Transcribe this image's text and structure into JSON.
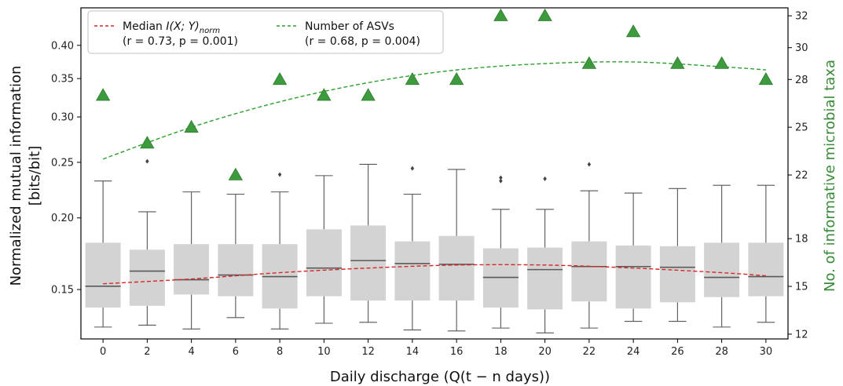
{
  "chart_data": {
    "type": "box",
    "xlabel": "Daily discharge (Q(t − n days))",
    "ylabel_line1": "Normalized mutual information",
    "ylabel_line2": "[bits/bit]",
    "y2label": "No. of informative microbial taxa",
    "y_scale": "log",
    "ylim": [
      0.123,
      0.465
    ],
    "y_ticks": [
      0.15,
      0.2,
      0.25,
      0.3,
      0.35,
      0.4
    ],
    "y_tick_labels": [
      "0.15",
      "0.20",
      "0.25",
      "0.30",
      "0.35",
      "0.40"
    ],
    "y2lim": [
      11.7,
      32.5
    ],
    "y2_ticks": [
      12,
      15,
      18,
      22,
      25,
      28,
      30,
      32
    ],
    "x_categories": [
      "0",
      "2",
      "4",
      "6",
      "8",
      "10",
      "12",
      "14",
      "16",
      "18",
      "20",
      "22",
      "24",
      "26",
      "28",
      "30"
    ],
    "boxes": [
      {
        "x": "0",
        "whislo": 0.129,
        "q1": 0.1395,
        "med": 0.152,
        "q3": 0.181,
        "whishi": 0.232,
        "fliers": []
      },
      {
        "x": "2",
        "whislo": 0.13,
        "q1": 0.1405,
        "med": 0.1615,
        "q3": 0.176,
        "whishi": 0.205,
        "fliers": [
          0.251
        ]
      },
      {
        "x": "4",
        "whislo": 0.128,
        "q1": 0.147,
        "med": 0.156,
        "q3": 0.18,
        "whishi": 0.222,
        "fliers": []
      },
      {
        "x": "6",
        "whislo": 0.134,
        "q1": 0.146,
        "med": 0.159,
        "q3": 0.18,
        "whishi": 0.22,
        "fliers": []
      },
      {
        "x": "8",
        "whislo": 0.128,
        "q1": 0.139,
        "med": 0.158,
        "q3": 0.18,
        "whishi": 0.222,
        "fliers": [
          0.238
        ]
      },
      {
        "x": "10",
        "whislo": 0.131,
        "q1": 0.146,
        "med": 0.1635,
        "q3": 0.191,
        "whishi": 0.237,
        "fliers": []
      },
      {
        "x": "12",
        "whislo": 0.1315,
        "q1": 0.1435,
        "med": 0.1685,
        "q3": 0.194,
        "whishi": 0.248,
        "fliers": []
      },
      {
        "x": "14",
        "whislo": 0.1275,
        "q1": 0.1435,
        "med": 0.1665,
        "q3": 0.182,
        "whishi": 0.22,
        "fliers": [
          0.244
        ]
      },
      {
        "x": "16",
        "whislo": 0.127,
        "q1": 0.1435,
        "med": 0.166,
        "q3": 0.186,
        "whishi": 0.243,
        "fliers": []
      },
      {
        "x": "18",
        "whislo": 0.1285,
        "q1": 0.1395,
        "med": 0.1575,
        "q3": 0.177,
        "whishi": 0.207,
        "fliers": [
          0.232,
          0.235
        ]
      },
      {
        "x": "20",
        "whislo": 0.126,
        "q1": 0.1385,
        "med": 0.1625,
        "q3": 0.1775,
        "whishi": 0.207,
        "fliers": [
          0.234
        ]
      },
      {
        "x": "22",
        "whislo": 0.1285,
        "q1": 0.143,
        "med": 0.1645,
        "q3": 0.182,
        "whishi": 0.223,
        "fliers": [
          0.248
        ]
      },
      {
        "x": "24",
        "whislo": 0.132,
        "q1": 0.139,
        "med": 0.1645,
        "q3": 0.179,
        "whishi": 0.221,
        "fliers": []
      },
      {
        "x": "26",
        "whislo": 0.132,
        "q1": 0.1425,
        "med": 0.164,
        "q3": 0.1785,
        "whishi": 0.225,
        "fliers": []
      },
      {
        "x": "28",
        "whislo": 0.129,
        "q1": 0.1455,
        "med": 0.1575,
        "q3": 0.181,
        "whishi": 0.228,
        "fliers": []
      },
      {
        "x": "30",
        "whislo": 0.1315,
        "q1": 0.146,
        "med": 0.158,
        "q3": 0.181,
        "whishi": 0.228,
        "fliers": []
      }
    ],
    "series": [
      {
        "name": "Number of ASVs",
        "axis": "right",
        "marker": "triangle",
        "x": [
          "0",
          "2",
          "4",
          "6",
          "8",
          "10",
          "12",
          "14",
          "16",
          "18",
          "20",
          "22",
          "24",
          "26",
          "28",
          "30"
        ],
        "values": [
          27,
          24,
          25,
          22,
          28,
          27,
          27,
          28,
          28,
          32,
          32,
          29,
          31,
          29,
          29,
          28
        ]
      },
      {
        "name": "Median I(X;Y)norm",
        "axis": "left",
        "style": "dashed-fit",
        "x": [
          0,
          30
        ],
        "fit_points": [
          [
            0,
            0.1535
          ],
          [
            4,
            0.1565
          ],
          [
            8,
            0.1605
          ],
          [
            12,
            0.1635
          ],
          [
            16,
            0.1655
          ],
          [
            20,
            0.1655
          ],
          [
            24,
            0.1635
          ],
          [
            28,
            0.1605
          ],
          [
            30,
            0.1585
          ]
        ]
      },
      {
        "name": "Number of ASVs fit",
        "axis": "right",
        "style": "dashed-fit",
        "fit_points": [
          [
            0,
            23.0
          ],
          [
            4,
            25.0
          ],
          [
            8,
            26.6
          ],
          [
            12,
            27.8
          ],
          [
            16,
            28.6
          ],
          [
            20,
            29.0
          ],
          [
            24,
            29.1
          ],
          [
            28,
            28.8
          ],
          [
            30,
            28.6
          ]
        ]
      }
    ],
    "legend": {
      "location": "top-left",
      "entries": [
        {
          "line1_prefix": "Median ",
          "line1_math": "I(X; Y)",
          "line1_sub": "norm",
          "line2": "(r = 0.73, p = 0.001)",
          "color": "#d62728"
        },
        {
          "line1_prefix": "Number of ASVs",
          "line1_math": "",
          "line1_sub": "",
          "line2": "(r = 0.68, p = 0.004)",
          "color": "#2ca02c"
        }
      ]
    },
    "colors": {
      "box_fill": "#d3d3d3",
      "median_line": "#5a5a5a",
      "whisker": "#555555",
      "flier": "#444444",
      "triangle": "#3d9a3d",
      "red_fit": "#d62728",
      "green_fit": "#2ca02c",
      "right_axis_label": "#3a8a3a"
    }
  }
}
